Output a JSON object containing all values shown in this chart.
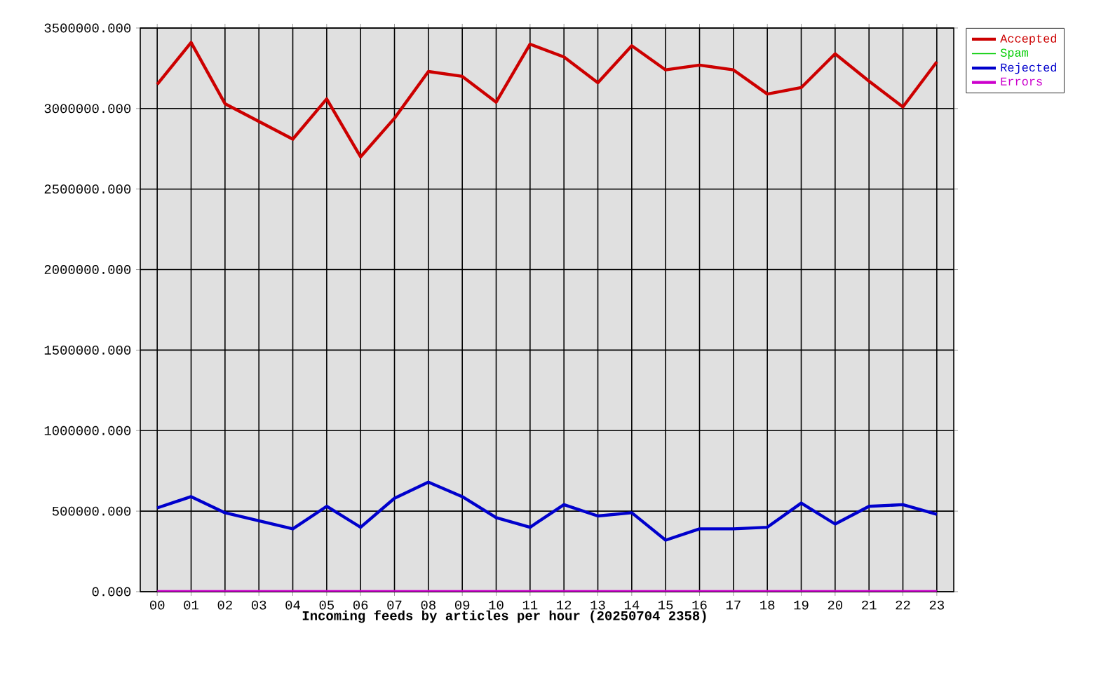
{
  "chart_data": {
    "type": "line",
    "xlabel": "Incoming feeds by articles per hour (20250704 2358)",
    "categories": [
      "00",
      "01",
      "02",
      "03",
      "04",
      "05",
      "06",
      "07",
      "08",
      "09",
      "10",
      "11",
      "12",
      "13",
      "14",
      "15",
      "16",
      "17",
      "18",
      "19",
      "20",
      "21",
      "22",
      "23"
    ],
    "series": [
      {
        "name": "Accepted",
        "color": "#cc0000",
        "values": [
          3150000,
          3410000,
          3030000,
          2920000,
          2810000,
          3060000,
          2700000,
          2940000,
          3230000,
          3200000,
          3040000,
          3400000,
          3320000,
          3160000,
          3390000,
          3240000,
          3270000,
          3240000,
          3090000,
          3130000,
          3340000,
          3170000,
          3010000,
          3290000
        ]
      },
      {
        "name": "Spam",
        "color": "#00cc00",
        "values": [
          null,
          null,
          null,
          null,
          null,
          null,
          null,
          null,
          null,
          null,
          null,
          null,
          null,
          null,
          null,
          null,
          null,
          null,
          null,
          null,
          null,
          null,
          null,
          null
        ]
      },
      {
        "name": "Rejected",
        "color": "#0000cc",
        "values": [
          520000,
          590000,
          490000,
          440000,
          390000,
          530000,
          400000,
          580000,
          680000,
          590000,
          460000,
          400000,
          540000,
          470000,
          490000,
          320000,
          390000,
          390000,
          400000,
          550000,
          420000,
          530000,
          540000,
          480000
        ]
      },
      {
        "name": "Errors",
        "color": "#cc00cc",
        "values": [
          0,
          0,
          0,
          0,
          0,
          0,
          0,
          0,
          0,
          0,
          0,
          0,
          0,
          0,
          0,
          0,
          0,
          0,
          0,
          0,
          0,
          0,
          0,
          0
        ]
      }
    ],
    "ylim": [
      0,
      3500000
    ],
    "yticks": [
      {
        "value": 0,
        "label": "0.000"
      },
      {
        "value": 500000,
        "label": "500000.000"
      },
      {
        "value": 1000000,
        "label": "1000000.000"
      },
      {
        "value": 1500000,
        "label": "1500000.000"
      },
      {
        "value": 2000000,
        "label": "2000000.000"
      },
      {
        "value": 2500000,
        "label": "2500000.000"
      },
      {
        "value": 3000000,
        "label": "3000000.000"
      },
      {
        "value": 3500000,
        "label": "3500000.000"
      }
    ],
    "grid": true,
    "legend": "top right",
    "marker": "none",
    "line_style": "solid"
  }
}
